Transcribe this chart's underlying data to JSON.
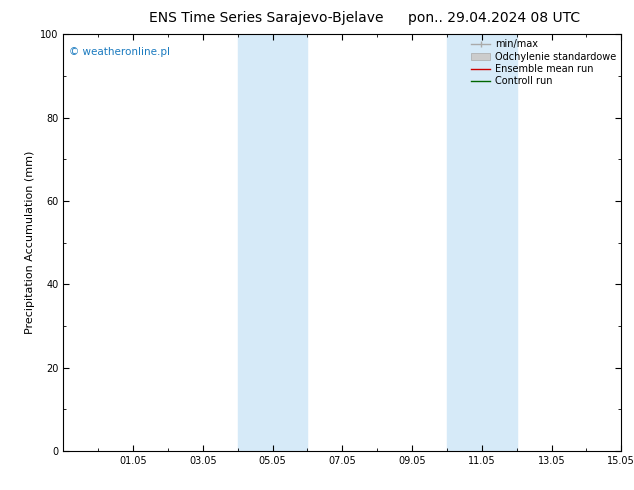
{
  "title_left": "ENS Time Series Sarajevo-Bjelave",
  "title_right": "pon.. 29.04.2024 08 UTC",
  "ylabel": "Precipitation Accumulation (mm)",
  "watermark": "© weatheronline.pl",
  "watermark_color": "#1a7abf",
  "ylim": [
    0,
    100
  ],
  "y_ticks": [
    0,
    20,
    40,
    60,
    80,
    100
  ],
  "xlim": [
    0,
    16
  ],
  "x_tick_labels": [
    "01.05",
    "03.05",
    "05.05",
    "07.05",
    "09.05",
    "11.05",
    "13.05",
    "15.05"
  ],
  "x_tick_positions": [
    2,
    4,
    6,
    8,
    10,
    12,
    14,
    16
  ],
  "shaded_regions": [
    {
      "x_start": 5,
      "x_end": 7
    },
    {
      "x_start": 11,
      "x_end": 13
    }
  ],
  "shade_color": "#d6eaf8",
  "background_color": "#ffffff",
  "plot_bg_color": "#ffffff",
  "legend_entries": [
    {
      "label": "min/max",
      "color": "#aaaaaa",
      "lw": 1.0
    },
    {
      "label": "Odchylenie standardowe",
      "color": "#cccccc",
      "lw": 5
    },
    {
      "label": "Ensemble mean run",
      "color": "#cc0000",
      "lw": 1.0
    },
    {
      "label": "Controll run",
      "color": "#006600",
      "lw": 1.0
    }
  ],
  "title_fontsize": 10,
  "axis_label_fontsize": 8,
  "tick_fontsize": 7,
  "watermark_fontsize": 7.5,
  "legend_fontsize": 7
}
